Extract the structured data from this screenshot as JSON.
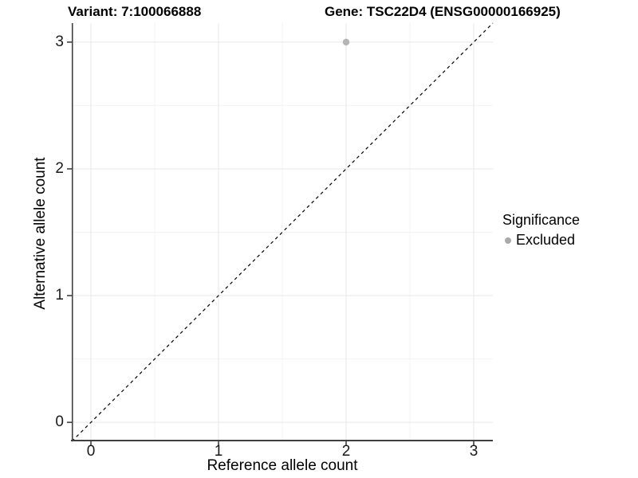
{
  "chart_data": {
    "type": "scatter",
    "titles": {
      "variant": "Variant: 7:100066888",
      "gene": "Gene: TSC22D4 (ENSG00000166925)"
    },
    "xlabel": "Reference allele count",
    "ylabel": "Alternative allele count",
    "xlim": [
      -0.15,
      3.15
    ],
    "ylim": [
      -0.15,
      3.15
    ],
    "x_ticks": [
      0,
      1,
      2,
      3
    ],
    "y_ticks": [
      0,
      1,
      2,
      3
    ],
    "minor_ticks": [
      0.5,
      1.5,
      2.5
    ],
    "grid": true,
    "identity_line": {
      "style": "dashed",
      "equation": "y = x"
    },
    "series": [
      {
        "name": "Excluded",
        "points": [
          {
            "x": 2,
            "y": 3
          }
        ]
      }
    ],
    "legend": {
      "title": "Significance",
      "position": "right",
      "entries": [
        {
          "label": "Excluded"
        }
      ]
    }
  },
  "colors": {
    "background": "#ffffff",
    "axis_line": "#3f3f3f",
    "tick": "#333333",
    "grid_major": "#e7e7e7",
    "grid_minor": "#f3f3f3",
    "point": "#b4b4b4",
    "legend_point": "#aaaaaa",
    "identity_line": "#000000",
    "text": "#000000"
  }
}
